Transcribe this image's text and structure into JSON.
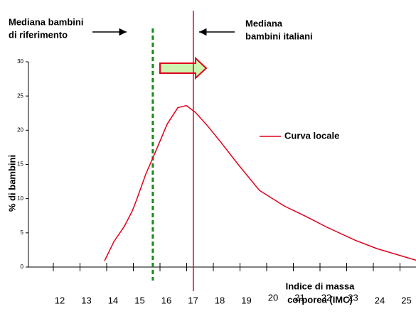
{
  "chart_data": {
    "type": "line",
    "y_label": "% di bambini",
    "x_label": [
      "Indice di massa",
      "corporea (IMC)"
    ],
    "annotations": [
      {
        "lines": [
          "Mediana bambini",
          "di riferimento"
        ]
      },
      {
        "lines": [
          "Mediana",
          "bambini italiani"
        ]
      }
    ],
    "reference_lines": [
      {
        "x": 15.73,
        "color": "#1a8a1a",
        "style": "dashed"
      },
      {
        "x": 17.25,
        "color": "#e0001b",
        "style": "solid"
      }
    ],
    "series": [
      {
        "name": "Curva locale",
        "color": "#e0001b",
        "x": [
          13.92,
          14.27,
          14.67,
          14.96,
          15.12,
          15.47,
          15.87,
          16.27,
          16.67,
          16.99,
          17.33,
          17.79,
          18.27,
          18.93,
          19.73,
          20.67,
          21.47,
          22.27,
          23.33,
          24.13,
          25.6
        ],
        "values": [
          0.9,
          3.7,
          6.0,
          8.2,
          9.8,
          13.6,
          17.2,
          20.9,
          23.3,
          23.6,
          22.6,
          20.6,
          18.3,
          15.0,
          11.2,
          8.9,
          7.4,
          5.8,
          3.9,
          2.7,
          1.0
        ]
      }
    ],
    "xlim": [
      11,
      25.6
    ],
    "xticks": [
      12,
      13,
      14,
      15,
      16,
      17,
      18,
      19,
      20,
      21,
      22,
      23,
      24,
      25
    ],
    "ylim": [
      0,
      30
    ],
    "yticks": [
      0,
      5,
      10,
      15,
      20,
      25,
      30
    ]
  }
}
